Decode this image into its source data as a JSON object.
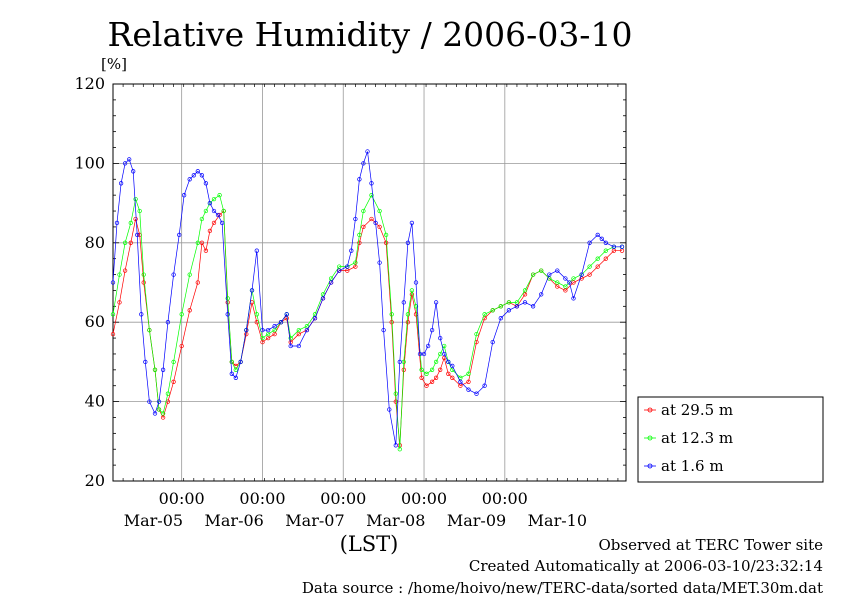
{
  "chart_data": {
    "type": "line",
    "title": "Relative Humidity / 2006-03-10",
    "ylabel": "[%]",
    "xlabel": "(LST)",
    "ylim": [
      20,
      120
    ],
    "xlim": [
      0,
      6.35
    ],
    "yticks": [
      20,
      40,
      60,
      80,
      100,
      120
    ],
    "xticks_time": [
      {
        "x": 0.85,
        "label": "00:00"
      },
      {
        "x": 1.85,
        "label": "00:00"
      },
      {
        "x": 2.85,
        "label": "00:00"
      },
      {
        "x": 3.85,
        "label": "00:00"
      },
      {
        "x": 4.85,
        "label": "00:00"
      }
    ],
    "xticks_date": [
      {
        "x": 0.5,
        "label": "Mar-05"
      },
      {
        "x": 1.5,
        "label": "Mar-06"
      },
      {
        "x": 2.5,
        "label": "Mar-07"
      },
      {
        "x": 3.5,
        "label": "Mar-08"
      },
      {
        "x": 4.5,
        "label": "Mar-09"
      },
      {
        "x": 5.5,
        "label": "Mar-10"
      }
    ],
    "grid": true,
    "legend_position": "right",
    "series": [
      {
        "name": "at 29.5 m",
        "color": "#ff0000",
        "x": [
          0,
          0.08,
          0.15,
          0.22,
          0.28,
          0.33,
          0.38,
          0.45,
          0.52,
          0.57,
          0.62,
          0.68,
          0.75,
          0.85,
          0.95,
          1.05,
          1.1,
          1.15,
          1.2,
          1.25,
          1.32,
          1.37,
          1.42,
          1.47,
          1.52,
          1.58,
          1.65,
          1.72,
          1.78,
          1.85,
          1.92,
          2.0,
          2.08,
          2.15,
          2.2,
          2.3,
          2.4,
          2.5,
          2.6,
          2.7,
          2.8,
          2.9,
          3.0,
          3.05,
          3.1,
          3.2,
          3.3,
          3.38,
          3.45,
          3.5,
          3.55,
          3.6,
          3.65,
          3.7,
          3.75,
          3.82,
          3.88,
          3.95,
          4.0,
          4.05,
          4.1,
          4.15,
          4.2,
          4.3,
          4.4,
          4.5,
          4.6,
          4.7,
          4.8,
          4.9,
          5.0,
          5.1,
          5.2,
          5.3,
          5.4,
          5.5,
          5.6,
          5.7,
          5.8,
          5.9,
          6.0,
          6.1,
          6.2,
          6.3
        ],
        "y": [
          57,
          65,
          73,
          80,
          86,
          82,
          70,
          58,
          48,
          38,
          36,
          40,
          45,
          54,
          63,
          70,
          80,
          78,
          83,
          85,
          87,
          88,
          65,
          50,
          49,
          50,
          57,
          65,
          60,
          55,
          56,
          57,
          60,
          61,
          55,
          57,
          58,
          61,
          66,
          70,
          73,
          73,
          74,
          80,
          84,
          86,
          84,
          80,
          60,
          40,
          29,
          48,
          60,
          67,
          62,
          46,
          44,
          45,
          46,
          48,
          51,
          47,
          46,
          44,
          45,
          55,
          61,
          63,
          64,
          65,
          64,
          67,
          72,
          73,
          71,
          69,
          68,
          70,
          71,
          72,
          74,
          76,
          78,
          78
        ]
      },
      {
        "name": "at 12.3 m",
        "color": "#00ff00",
        "x": [
          0,
          0.08,
          0.15,
          0.22,
          0.28,
          0.33,
          0.38,
          0.45,
          0.52,
          0.57,
          0.62,
          0.68,
          0.75,
          0.85,
          0.95,
          1.05,
          1.1,
          1.15,
          1.2,
          1.25,
          1.32,
          1.37,
          1.42,
          1.47,
          1.52,
          1.58,
          1.65,
          1.72,
          1.78,
          1.85,
          1.92,
          2.0,
          2.08,
          2.15,
          2.2,
          2.3,
          2.4,
          2.5,
          2.6,
          2.7,
          2.8,
          2.9,
          3.0,
          3.05,
          3.1,
          3.2,
          3.3,
          3.38,
          3.45,
          3.5,
          3.55,
          3.6,
          3.65,
          3.7,
          3.75,
          3.82,
          3.88,
          3.95,
          4.0,
          4.05,
          4.1,
          4.15,
          4.2,
          4.3,
          4.4,
          4.5,
          4.6,
          4.7,
          4.8,
          4.9,
          5.0,
          5.1,
          5.2,
          5.3,
          5.4,
          5.5,
          5.6,
          5.7,
          5.8,
          5.9,
          6.0,
          6.1,
          6.2,
          6.3
        ],
        "y": [
          62,
          72,
          80,
          85,
          91,
          88,
          72,
          58,
          48,
          38,
          37,
          42,
          50,
          62,
          72,
          80,
          86,
          88,
          90,
          91,
          92,
          88,
          66,
          50,
          48,
          50,
          58,
          68,
          62,
          56,
          57,
          58,
          60,
          62,
          56,
          58,
          59,
          62,
          67,
          71,
          74,
          74,
          75,
          82,
          88,
          92,
          88,
          82,
          62,
          42,
          28,
          50,
          62,
          68,
          64,
          48,
          47,
          48,
          50,
          52,
          54,
          50,
          48,
          46,
          47,
          57,
          62,
          63,
          64,
          65,
          65,
          68,
          72,
          73,
          71,
          70,
          69,
          71,
          72,
          74,
          76,
          78,
          79,
          79
        ]
      },
      {
        "name": "at 1.6 m",
        "color": "#0000ff",
        "x": [
          0,
          0.05,
          0.1,
          0.15,
          0.2,
          0.25,
          0.3,
          0.35,
          0.4,
          0.45,
          0.52,
          0.57,
          0.62,
          0.68,
          0.75,
          0.82,
          0.88,
          0.95,
          1.0,
          1.05,
          1.1,
          1.15,
          1.2,
          1.25,
          1.3,
          1.35,
          1.42,
          1.47,
          1.52,
          1.58,
          1.65,
          1.72,
          1.78,
          1.85,
          1.92,
          2.0,
          2.08,
          2.15,
          2.2,
          2.3,
          2.4,
          2.5,
          2.6,
          2.7,
          2.8,
          2.9,
          2.95,
          3.0,
          3.05,
          3.1,
          3.15,
          3.2,
          3.25,
          3.3,
          3.35,
          3.42,
          3.5,
          3.55,
          3.6,
          3.65,
          3.7,
          3.75,
          3.8,
          3.85,
          3.9,
          3.95,
          4.0,
          4.05,
          4.1,
          4.15,
          4.2,
          4.3,
          4.4,
          4.5,
          4.6,
          4.7,
          4.8,
          4.9,
          5.0,
          5.1,
          5.2,
          5.3,
          5.4,
          5.5,
          5.6,
          5.65,
          5.7,
          5.8,
          5.9,
          6.0,
          6.05,
          6.1,
          6.2,
          6.3
        ],
        "y": [
          70,
          85,
          95,
          100,
          101,
          98,
          82,
          62,
          50,
          40,
          37,
          40,
          48,
          60,
          72,
          82,
          92,
          96,
          97,
          98,
          97,
          95,
          90,
          88,
          87,
          85,
          62,
          47,
          46,
          50,
          58,
          68,
          78,
          58,
          58,
          59,
          60,
          62,
          54,
          54,
          58,
          61,
          66,
          70,
          73,
          74,
          78,
          86,
          96,
          100,
          103,
          95,
          85,
          75,
          58,
          38,
          29,
          50,
          65,
          80,
          85,
          70,
          52,
          52,
          54,
          58,
          65,
          56,
          52,
          50,
          49,
          45,
          43,
          42,
          44,
          55,
          61,
          63,
          64,
          65,
          64,
          67,
          72,
          73,
          71,
          70,
          66,
          72,
          80,
          82,
          81,
          80,
          79,
          79
        ]
      }
    ]
  },
  "footer": {
    "line1": "Observed at TERC Tower site",
    "line2": "Created Automatically at 2006-03-10/23:32:14",
    "line3": "Data source : /home/hoivo/new/TERC-data/sorted  data/MET.30m.dat"
  }
}
